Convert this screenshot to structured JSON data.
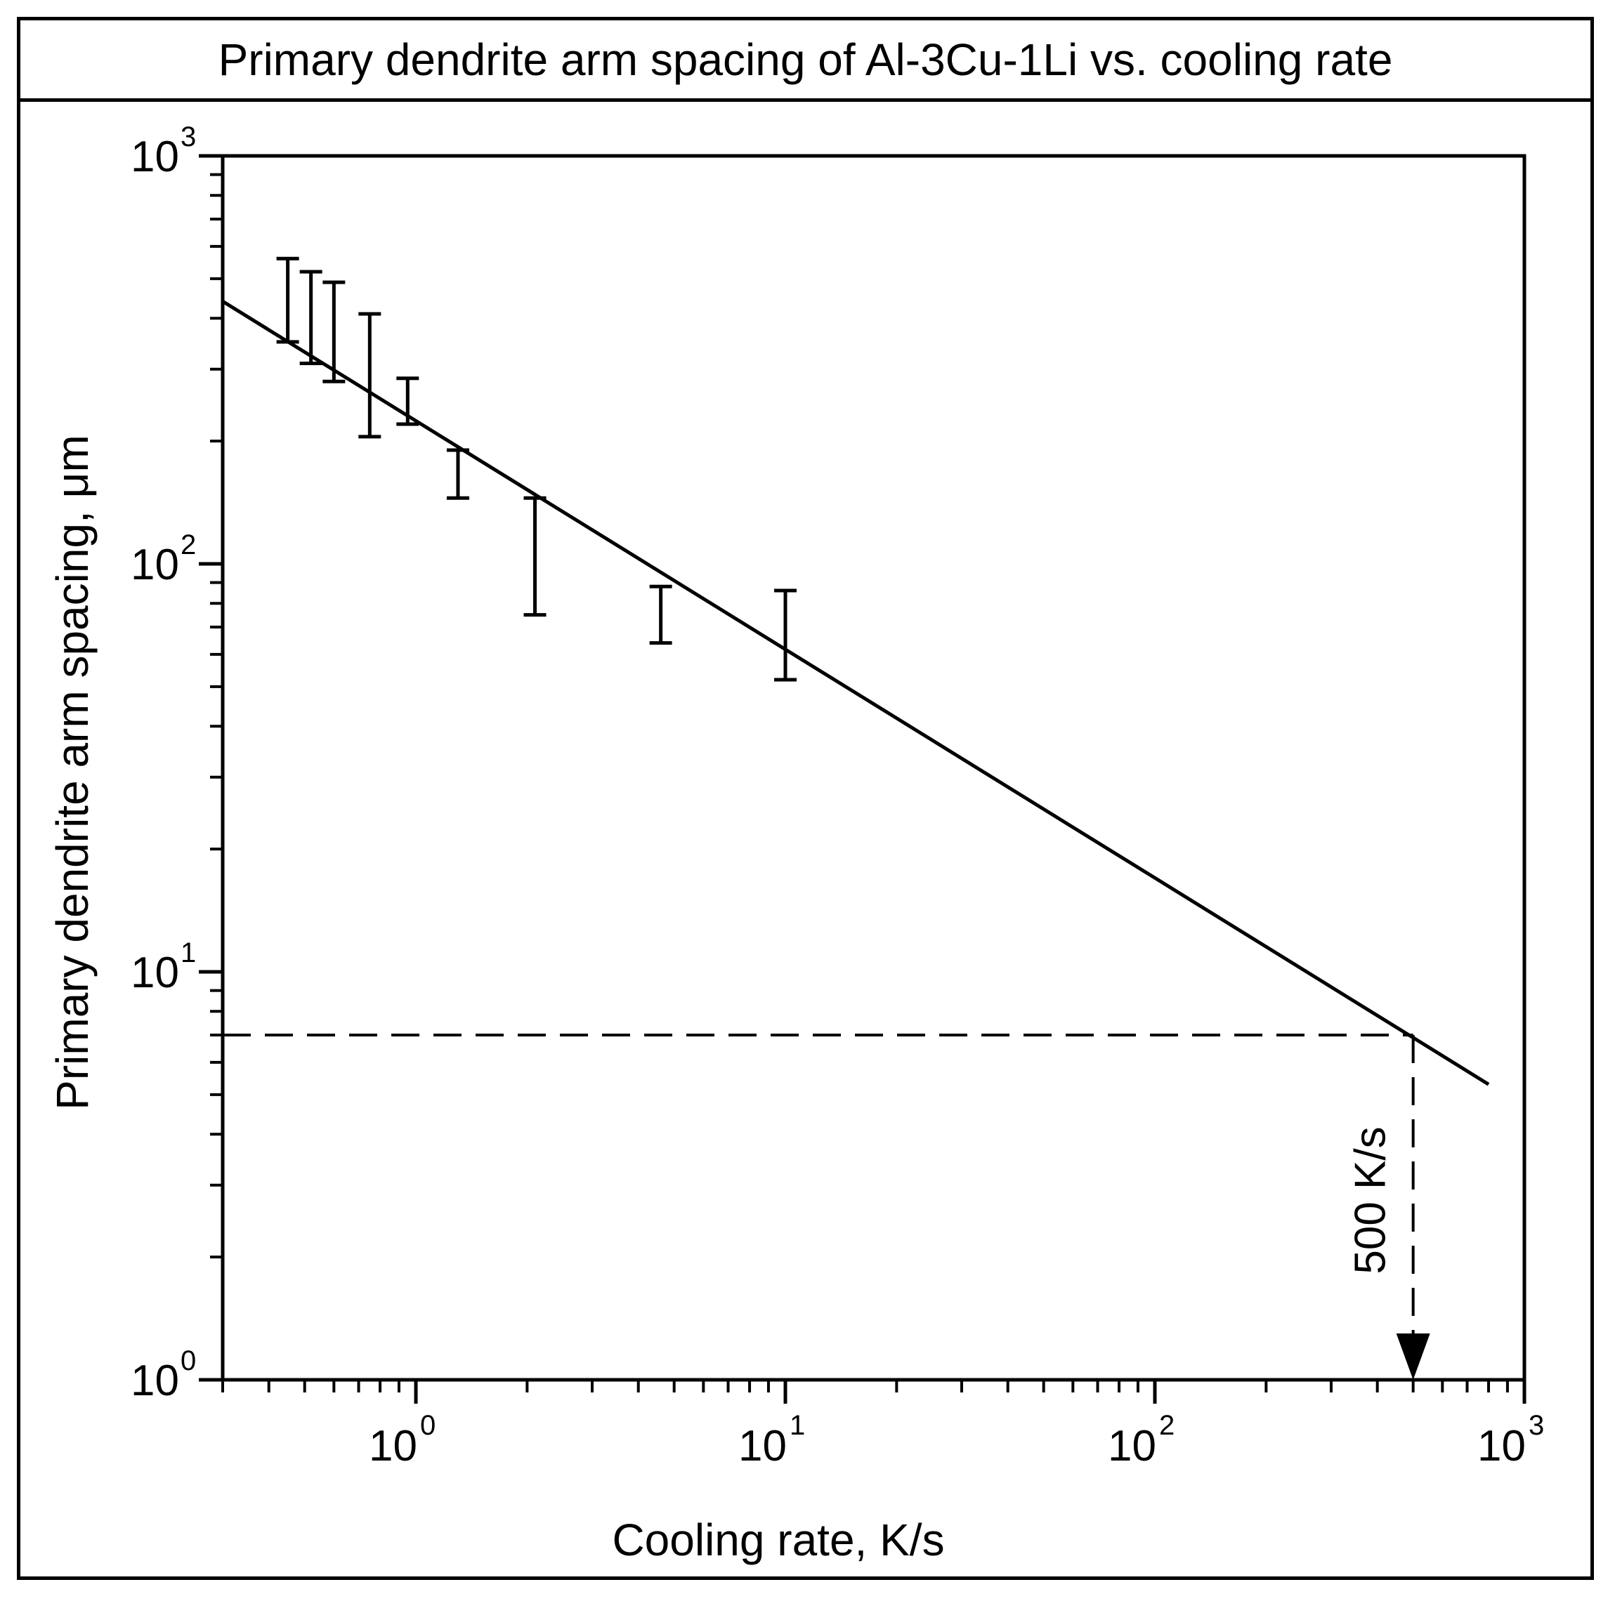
{
  "chart_data": {
    "type": "line",
    "title": "Primary dendrite arm spacing of Al-3Cu-1Li vs. cooling rate",
    "xlabel": "Cooling rate, K/s",
    "ylabel": "Primary dendrite arm spacing, μm",
    "x_scale": "log",
    "y_scale": "log",
    "xlim": [
      0.3,
      1000
    ],
    "ylim": [
      1,
      1000
    ],
    "x_ticks": [
      {
        "base": "10",
        "exp": "0",
        "value": 1
      },
      {
        "base": "10",
        "exp": "1",
        "value": 10
      },
      {
        "base": "10",
        "exp": "2",
        "value": 100
      },
      {
        "base": "10",
        "exp": "3",
        "value": 1000
      }
    ],
    "y_ticks": [
      {
        "base": "10",
        "exp": "0",
        "value": 1
      },
      {
        "base": "10",
        "exp": "1",
        "value": 10
      },
      {
        "base": "10",
        "exp": "2",
        "value": 100
      },
      {
        "base": "10",
        "exp": "3",
        "value": 1000
      }
    ],
    "fit_line": {
      "x": [
        0.3,
        800
      ],
      "y": [
        440,
        5.3
      ]
    },
    "error_bars": [
      {
        "x": 0.45,
        "low": 350,
        "high": 560
      },
      {
        "x": 0.52,
        "low": 310,
        "high": 520
      },
      {
        "x": 0.6,
        "low": 280,
        "high": 490
      },
      {
        "x": 0.75,
        "low": 205,
        "high": 410
      },
      {
        "x": 0.95,
        "low": 220,
        "high": 285
      },
      {
        "x": 1.3,
        "low": 145,
        "high": 190
      },
      {
        "x": 2.1,
        "low": 75,
        "high": 145
      },
      {
        "x": 4.6,
        "low": 64,
        "high": 88
      },
      {
        "x": 10,
        "low": 52,
        "high": 86
      }
    ],
    "reference": {
      "x": 500,
      "y": 7
    },
    "annotation": "500 K/s",
    "grid": false,
    "legend": "none"
  }
}
